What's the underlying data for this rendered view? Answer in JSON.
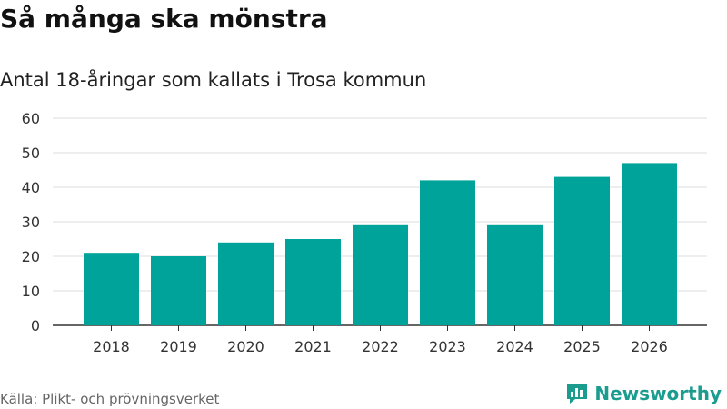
{
  "header": {
    "title": "Så många ska mönstra",
    "subtitle": "Antal 18-åringar som kallats i Trosa kommun"
  },
  "footer": {
    "source": "Källa: Plikt- och prövningsverket",
    "brand": "Newsworthy",
    "brand_icon": "newsworthy-logo-icon"
  },
  "colors": {
    "bar": "#00a399",
    "grid": "#dddddd",
    "axis": "#333333",
    "brand": "#1a9c8e"
  },
  "chart_data": {
    "type": "bar",
    "categories": [
      "2018",
      "2019",
      "2020",
      "2021",
      "2022",
      "2023",
      "2024",
      "2025",
      "2026"
    ],
    "values": [
      21,
      20,
      24,
      25,
      29,
      42,
      29,
      43,
      47
    ],
    "title": "Så många ska mönstra",
    "subtitle": "Antal 18-åringar som kallats i Trosa kommun",
    "xlabel": "",
    "ylabel": "",
    "ylim": [
      0,
      60
    ],
    "yticks": [
      0,
      10,
      20,
      30,
      40,
      50,
      60
    ],
    "grid": true,
    "legend": "none"
  }
}
